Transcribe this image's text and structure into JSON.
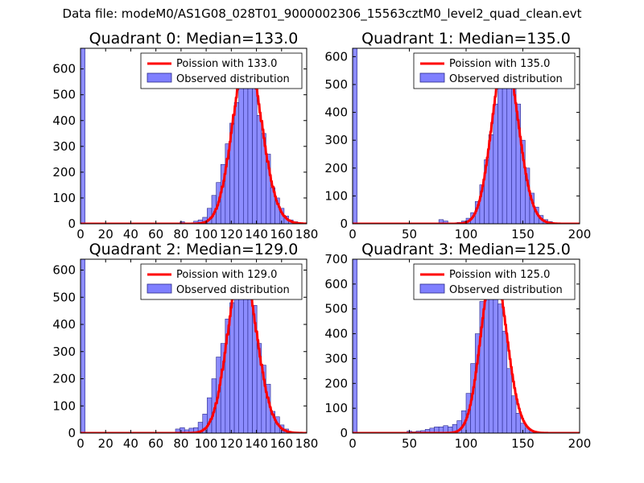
{
  "figure": {
    "suptitle": "Data file: modeM0/AS1G08_028T01_9000002306_15563cztM0_level2_quad_clean.evt"
  },
  "colors": {
    "bar_fill": "#7f7fff",
    "bar_edge": "#2a2a8a",
    "curve": "#ff0000",
    "axes": "#000000",
    "background": "#ffffff"
  },
  "chart_data": [
    {
      "type": "bar",
      "title": "Quadrant 0: Median=133.0",
      "legend": {
        "placement": "top-right",
        "curve_label": "Poission with 133.0",
        "bars_label": "Observed distribution"
      },
      "xlim": [
        0,
        180
      ],
      "ylim": [
        0,
        680
      ],
      "xticks": [
        0,
        20,
        40,
        60,
        80,
        100,
        120,
        140,
        160,
        180
      ],
      "yticks": [
        0,
        100,
        200,
        300,
        400,
        500,
        600
      ],
      "bin_width": 3.6,
      "bins": [
        [
          0,
          680
        ],
        [
          79.2,
          8
        ],
        [
          90,
          10
        ],
        [
          93.6,
          15
        ],
        [
          97.2,
          25
        ],
        [
          100.8,
          60
        ],
        [
          104.4,
          110
        ],
        [
          108,
          160
        ],
        [
          111.6,
          230
        ],
        [
          115.2,
          310
        ],
        [
          118.8,
          390
        ],
        [
          122.4,
          470
        ],
        [
          126,
          540
        ],
        [
          129.6,
          600
        ],
        [
          133.2,
          640
        ],
        [
          136.8,
          580
        ],
        [
          140.4,
          420
        ],
        [
          144,
          350
        ],
        [
          147.6,
          270
        ],
        [
          151.2,
          140
        ],
        [
          154.8,
          100
        ],
        [
          158.4,
          60
        ],
        [
          162,
          30
        ],
        [
          165.6,
          15
        ],
        [
          169.2,
          8
        ]
      ],
      "poisson": {
        "mean": 133.0,
        "peak": 645
      },
      "axis_edge_spike": {
        "x": 0,
        "value": 680
      }
    },
    {
      "type": "bar",
      "title": "Quadrant 1: Median=135.0",
      "legend": {
        "placement": "top-right",
        "curve_label": "Poission with 135.0",
        "bars_label": "Observed distribution"
      },
      "xlim": [
        0,
        200
      ],
      "ylim": [
        0,
        630
      ],
      "xticks": [
        0,
        50,
        100,
        150,
        200
      ],
      "yticks": [
        0,
        100,
        200,
        300,
        400,
        500,
        600
      ],
      "bin_width": 4,
      "bins": [
        [
          0,
          630
        ],
        [
          76,
          15
        ],
        [
          80,
          10
        ],
        [
          92,
          5
        ],
        [
          96,
          10
        ],
        [
          100,
          20
        ],
        [
          104,
          40
        ],
        [
          108,
          80
        ],
        [
          112,
          140
        ],
        [
          116,
          230
        ],
        [
          120,
          320
        ],
        [
          124,
          430
        ],
        [
          128,
          500
        ],
        [
          132,
          560
        ],
        [
          136,
          600
        ],
        [
          140,
          550
        ],
        [
          144,
          430
        ],
        [
          148,
          300
        ],
        [
          152,
          200
        ],
        [
          156,
          110
        ],
        [
          160,
          60
        ],
        [
          164,
          30
        ],
        [
          168,
          15
        ],
        [
          172,
          8
        ]
      ],
      "poisson": {
        "mean": 135.0,
        "peak": 600
      },
      "axis_edge_spike": {
        "x": 0,
        "value": 630
      }
    },
    {
      "type": "bar",
      "title": "Quadrant 2: Median=129.0",
      "legend": {
        "placement": "top-right",
        "curve_label": "Poission with 129.0",
        "bars_label": "Observed distribution"
      },
      "xlim": [
        0,
        180
      ],
      "ylim": [
        0,
        640
      ],
      "xticks": [
        0,
        20,
        40,
        60,
        80,
        100,
        120,
        140,
        160,
        180
      ],
      "yticks": [
        0,
        100,
        200,
        300,
        400,
        500,
        600
      ],
      "bin_width": 3.6,
      "bins": [
        [
          0,
          640
        ],
        [
          75.6,
          15
        ],
        [
          79.2,
          20
        ],
        [
          82.8,
          12
        ],
        [
          86.4,
          18
        ],
        [
          90,
          20
        ],
        [
          93.6,
          40
        ],
        [
          97.2,
          70
        ],
        [
          100.8,
          130
        ],
        [
          104.4,
          200
        ],
        [
          108,
          280
        ],
        [
          111.6,
          330
        ],
        [
          115.2,
          420
        ],
        [
          118.8,
          480
        ],
        [
          122.4,
          550
        ],
        [
          126,
          600
        ],
        [
          129.6,
          620
        ],
        [
          133.2,
          560
        ],
        [
          136.8,
          470
        ],
        [
          140.4,
          330
        ],
        [
          144,
          250
        ],
        [
          147.6,
          180
        ],
        [
          151.2,
          80
        ],
        [
          154.8,
          60
        ],
        [
          158.4,
          30
        ],
        [
          162,
          15
        ]
      ],
      "poisson": {
        "mean": 129.0,
        "peak": 615
      },
      "axis_edge_spike": {
        "x": 0,
        "value": 640
      }
    },
    {
      "type": "bar",
      "title": "Quadrant 3: Median=125.0",
      "legend": {
        "placement": "top-right",
        "curve_label": "Poission with 125.0",
        "bars_label": "Observed distribution"
      },
      "xlim": [
        0,
        200
      ],
      "ylim": [
        0,
        700
      ],
      "xticks": [
        0,
        50,
        100,
        150,
        200
      ],
      "yticks": [
        0,
        100,
        200,
        300,
        400,
        500,
        600,
        700
      ],
      "bin_width": 4,
      "bins": [
        [
          0,
          700
        ],
        [
          48,
          8
        ],
        [
          52,
          5
        ],
        [
          56,
          8
        ],
        [
          60,
          10
        ],
        [
          64,
          15
        ],
        [
          68,
          20
        ],
        [
          72,
          25
        ],
        [
          76,
          25
        ],
        [
          80,
          30
        ],
        [
          84,
          25
        ],
        [
          88,
          35
        ],
        [
          92,
          50
        ],
        [
          96,
          90
        ],
        [
          100,
          160
        ],
        [
          104,
          280
        ],
        [
          108,
          400
        ],
        [
          112,
          530
        ],
        [
          116,
          620
        ],
        [
          120,
          660
        ],
        [
          124,
          640
        ],
        [
          128,
          520
        ],
        [
          132,
          410
        ],
        [
          136,
          260
        ],
        [
          140,
          150
        ],
        [
          144,
          80
        ],
        [
          148,
          40
        ],
        [
          152,
          20
        ],
        [
          156,
          10
        ]
      ],
      "poisson": {
        "mean": 125.0,
        "peak": 670
      },
      "axis_edge_spike": {
        "x": 0,
        "value": 700
      }
    }
  ]
}
